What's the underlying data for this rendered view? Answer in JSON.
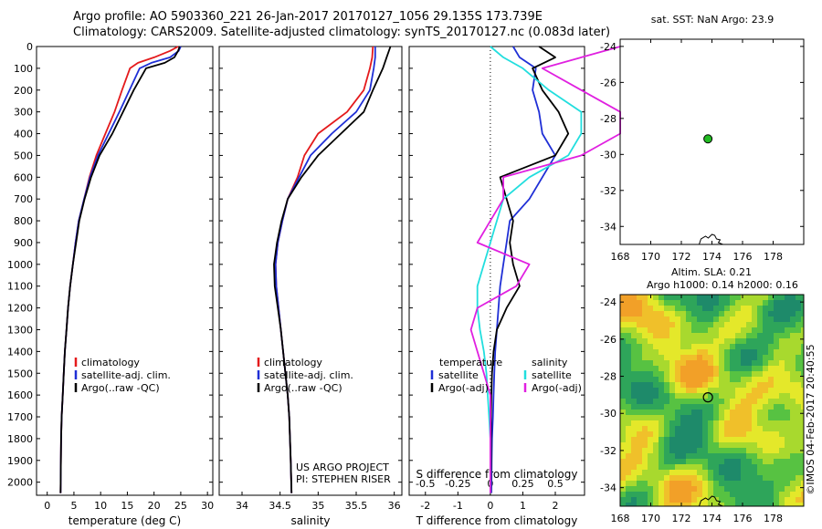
{
  "header": {
    "line1": "Argo profile: AO 5903360_221 26-Jan-2017 20170127_1056 29.135S 173.739E",
    "line2": "Climatology: CARS2009. Satellite-adjusted climatology: synTS_20170127.nc (0.083d later)"
  },
  "colors": {
    "clim": "#e41a1c",
    "sat": "#1f2fd6",
    "argo": "#000000",
    "sat_diff": "#22dede",
    "argo_diff": "#e020e0",
    "float_marker": "#22bb22"
  },
  "chart_data": [
    {
      "type": "line",
      "xlabel": "temperature (deg C)",
      "xlim": [
        -2,
        31
      ],
      "xticks": [
        0,
        5,
        10,
        15,
        20,
        25,
        30
      ],
      "ylim": [
        2060,
        0
      ],
      "yticks": [
        0,
        100,
        200,
        300,
        400,
        500,
        600,
        700,
        800,
        900,
        1000,
        1100,
        1200,
        1300,
        1400,
        1500,
        1600,
        1700,
        1800,
        1900,
        2000
      ],
      "legend": [
        "climatology",
        "satellite-adj. clim.",
        "Argo(..raw -QC)"
      ],
      "series": [
        {
          "name": "climatology",
          "color": "#e41a1c",
          "x": [
            24.5,
            23,
            20,
            17,
            15.5,
            14,
            12.6,
            10.9,
            9.2,
            7.9,
            6.9,
            5.9,
            5.3,
            4.8,
            4.3,
            3.9,
            3.6,
            3.3,
            3.1,
            2.9,
            2.7,
            2.6,
            2.5
          ],
          "y": [
            0,
            20,
            50,
            75,
            100,
            200,
            300,
            400,
            500,
            600,
            700,
            800,
            900,
            1000,
            1100,
            1200,
            1300,
            1400,
            1500,
            1600,
            1700,
            1800,
            2050
          ]
        },
        {
          "name": "satellite-adj. clim.",
          "color": "#1f2fd6",
          "x": [
            25,
            24.6,
            23,
            19.5,
            17.3,
            15.4,
            13.5,
            11.5,
            9.5,
            8,
            6.9,
            5.9,
            5.3,
            4.8,
            4.3,
            3.9,
            3.6,
            3.3,
            3.1,
            2.9,
            2.7,
            2.6,
            2.5
          ],
          "y": [
            0,
            20,
            50,
            75,
            100,
            200,
            300,
            400,
            500,
            600,
            700,
            800,
            900,
            1000,
            1100,
            1200,
            1300,
            1400,
            1500,
            1600,
            1700,
            1800,
            2050
          ]
        },
        {
          "name": "Argo(..raw -QC)",
          "color": "#000000",
          "x": [
            24.8,
            24.5,
            23.8,
            22,
            18.5,
            16.2,
            14.2,
            12.2,
            9.8,
            8.2,
            7,
            6,
            5.4,
            4.8,
            4.3,
            3.9,
            3.6,
            3.3,
            3.1,
            2.9,
            2.7,
            2.6,
            2.5
          ],
          "y": [
            0,
            20,
            50,
            75,
            100,
            200,
            300,
            400,
            500,
            600,
            700,
            800,
            900,
            1000,
            1100,
            1200,
            1300,
            1400,
            1500,
            1600,
            1700,
            1800,
            2050
          ]
        }
      ]
    },
    {
      "type": "line",
      "xlabel": "salinity",
      "xlim": [
        33.7,
        36.1
      ],
      "xticks": [
        34,
        34.5,
        35,
        35.5,
        36
      ],
      "ylim": [
        2060,
        0
      ],
      "legend": [
        "climatology",
        "satellite-adj. clim.",
        "Argo(..raw -QC)"
      ],
      "annotation": [
        "US ARGO PROJECT",
        "PI: STEPHEN RISER"
      ],
      "series": [
        {
          "name": "climatology",
          "color": "#e41a1c",
          "x": [
            35.72,
            35.71,
            35.68,
            35.6,
            35.38,
            35.0,
            34.82,
            34.73,
            34.6,
            34.53,
            34.47,
            34.44,
            34.45,
            34.48,
            34.51,
            34.54,
            34.57,
            34.6,
            34.62,
            34.63,
            34.64,
            34.65
          ],
          "y": [
            0,
            50,
            100,
            200,
            300,
            400,
            500,
            600,
            700,
            800,
            900,
            1000,
            1100,
            1200,
            1300,
            1400,
            1500,
            1600,
            1700,
            1800,
            1900,
            2050
          ]
        },
        {
          "name": "satellite-adj. clim.",
          "color": "#1f2fd6",
          "x": [
            35.75,
            35.75,
            35.73,
            35.68,
            35.5,
            35.18,
            34.9,
            34.75,
            34.6,
            34.53,
            34.47,
            34.44,
            34.45,
            34.48,
            34.51,
            34.54,
            34.57,
            34.6,
            34.62,
            34.63,
            34.64,
            34.65
          ],
          "y": [
            0,
            50,
            100,
            200,
            300,
            400,
            500,
            600,
            700,
            800,
            900,
            1000,
            1100,
            1200,
            1300,
            1400,
            1500,
            1600,
            1700,
            1800,
            1900,
            2050
          ]
        },
        {
          "name": "Argo(..raw -QC)",
          "color": "#000000",
          "x": [
            35.95,
            35.9,
            35.85,
            35.72,
            35.6,
            35.3,
            35.0,
            34.78,
            34.6,
            34.52,
            34.46,
            34.42,
            34.43,
            34.47,
            34.51,
            34.54,
            34.57,
            34.6,
            34.62,
            34.63,
            34.64,
            34.65
          ],
          "y": [
            0,
            50,
            100,
            200,
            300,
            400,
            500,
            600,
            700,
            800,
            900,
            1000,
            1100,
            1200,
            1300,
            1400,
            1500,
            1600,
            1700,
            1800,
            1900,
            2050
          ]
        }
      ]
    },
    {
      "type": "line",
      "xlabel": "T difference from climatology",
      "xlabel_top": "S difference from climatology",
      "xlim": [
        -2.5,
        2.9
      ],
      "xticks": [
        -2,
        -1,
        0,
        1,
        2
      ],
      "xticks_s": [
        -0.5,
        -0.25,
        0,
        0.25,
        0.5
      ],
      "s_scale": 4,
      "ylim": [
        2060,
        0
      ],
      "legend_headers": [
        "temperature",
        "salinity"
      ],
      "legend_t": [
        "satellite",
        "Argo(-adj)"
      ],
      "legend_s": [
        "satellite",
        "Argo(-adj)"
      ],
      "series": [
        {
          "name": "T satellite",
          "color": "#1f2fd6",
          "x": [
            0.7,
            0.9,
            1.4,
            1.3,
            1.5,
            1.6,
            2.0,
            1.6,
            1.2,
            0.6,
            0.5,
            0.4,
            0.3,
            0.25,
            0.2,
            0.15,
            0.12,
            0.1,
            0.08,
            0.05,
            0.04,
            0.03
          ],
          "y": [
            0,
            50,
            100,
            200,
            300,
            400,
            500,
            600,
            700,
            800,
            900,
            1000,
            1100,
            1200,
            1300,
            1400,
            1500,
            1600,
            1700,
            1800,
            1900,
            2050
          ]
        },
        {
          "name": "T Argo(-adj)",
          "color": "#000000",
          "x": [
            1.5,
            2.0,
            1.3,
            1.6,
            2.1,
            2.4,
            2.0,
            0.3,
            0.5,
            0.7,
            0.6,
            0.7,
            0.9,
            0.5,
            0.2,
            0.1,
            0.05,
            0.03,
            0.02,
            0.02,
            0.02,
            0.01
          ],
          "y": [
            0,
            50,
            100,
            200,
            300,
            400,
            500,
            600,
            700,
            800,
            900,
            1000,
            1100,
            1200,
            1300,
            1400,
            1500,
            1600,
            1700,
            1800,
            1900,
            2050
          ]
        },
        {
          "name": "S satellite",
          "color": "#22dede",
          "x": [
            0,
            0.1,
            0.25,
            0.45,
            0.7,
            0.7,
            0.6,
            0.3,
            0.1,
            0.05,
            0.0,
            -0.05,
            -0.1,
            -0.1,
            -0.08,
            -0.05,
            -0.03,
            -0.02,
            -0.01,
            0,
            0,
            0
          ],
          "y": [
            0,
            50,
            100,
            200,
            300,
            400,
            500,
            600,
            700,
            800,
            900,
            1000,
            1100,
            1200,
            1300,
            1400,
            1500,
            1600,
            1700,
            1800,
            1900,
            2050
          ]
        },
        {
          "name": "S Argo(-adj)",
          "color": "#e020e0",
          "x": [
            1.0,
            0.7,
            0.4,
            0.7,
            1.0,
            1.0,
            0.7,
            0.1,
            0.1,
            0.0,
            -0.1,
            0.3,
            0.2,
            -0.1,
            -0.15,
            -0.1,
            -0.05,
            0,
            0,
            0,
            0,
            0
          ],
          "y": [
            0,
            50,
            100,
            200,
            300,
            400,
            500,
            600,
            700,
            800,
            900,
            1000,
            1100,
            1200,
            1300,
            1400,
            1500,
            1600,
            1700,
            1800,
            1900,
            2050
          ]
        }
      ]
    },
    {
      "type": "scatter",
      "title": "sat. SST: NaN Argo: 23.9",
      "xlim": [
        168,
        180
      ],
      "ylim": [
        -35,
        -23.6
      ],
      "xticks": [
        168,
        170,
        172,
        174,
        176,
        178
      ],
      "yticks": [
        -24,
        -26,
        -28,
        -30,
        -32,
        -34
      ],
      "point": {
        "x": 173.739,
        "y": -29.135
      }
    },
    {
      "type": "heatmap",
      "title_lines": [
        "Altim. SLA: 0.21",
        "Argo h1000: 0.14 h2000: 0.16"
      ],
      "xlim": [
        168,
        180
      ],
      "ylim": [
        -35,
        -23.6
      ],
      "xticks": [
        168,
        170,
        172,
        174,
        176,
        178
      ],
      "yticks": [
        -24,
        -26,
        -28,
        -30,
        -32,
        -34
      ],
      "point": {
        "x": 173.739,
        "y": -29.135
      }
    }
  ],
  "credit": "©IMOS 04-Feb-2017 20:40:55"
}
